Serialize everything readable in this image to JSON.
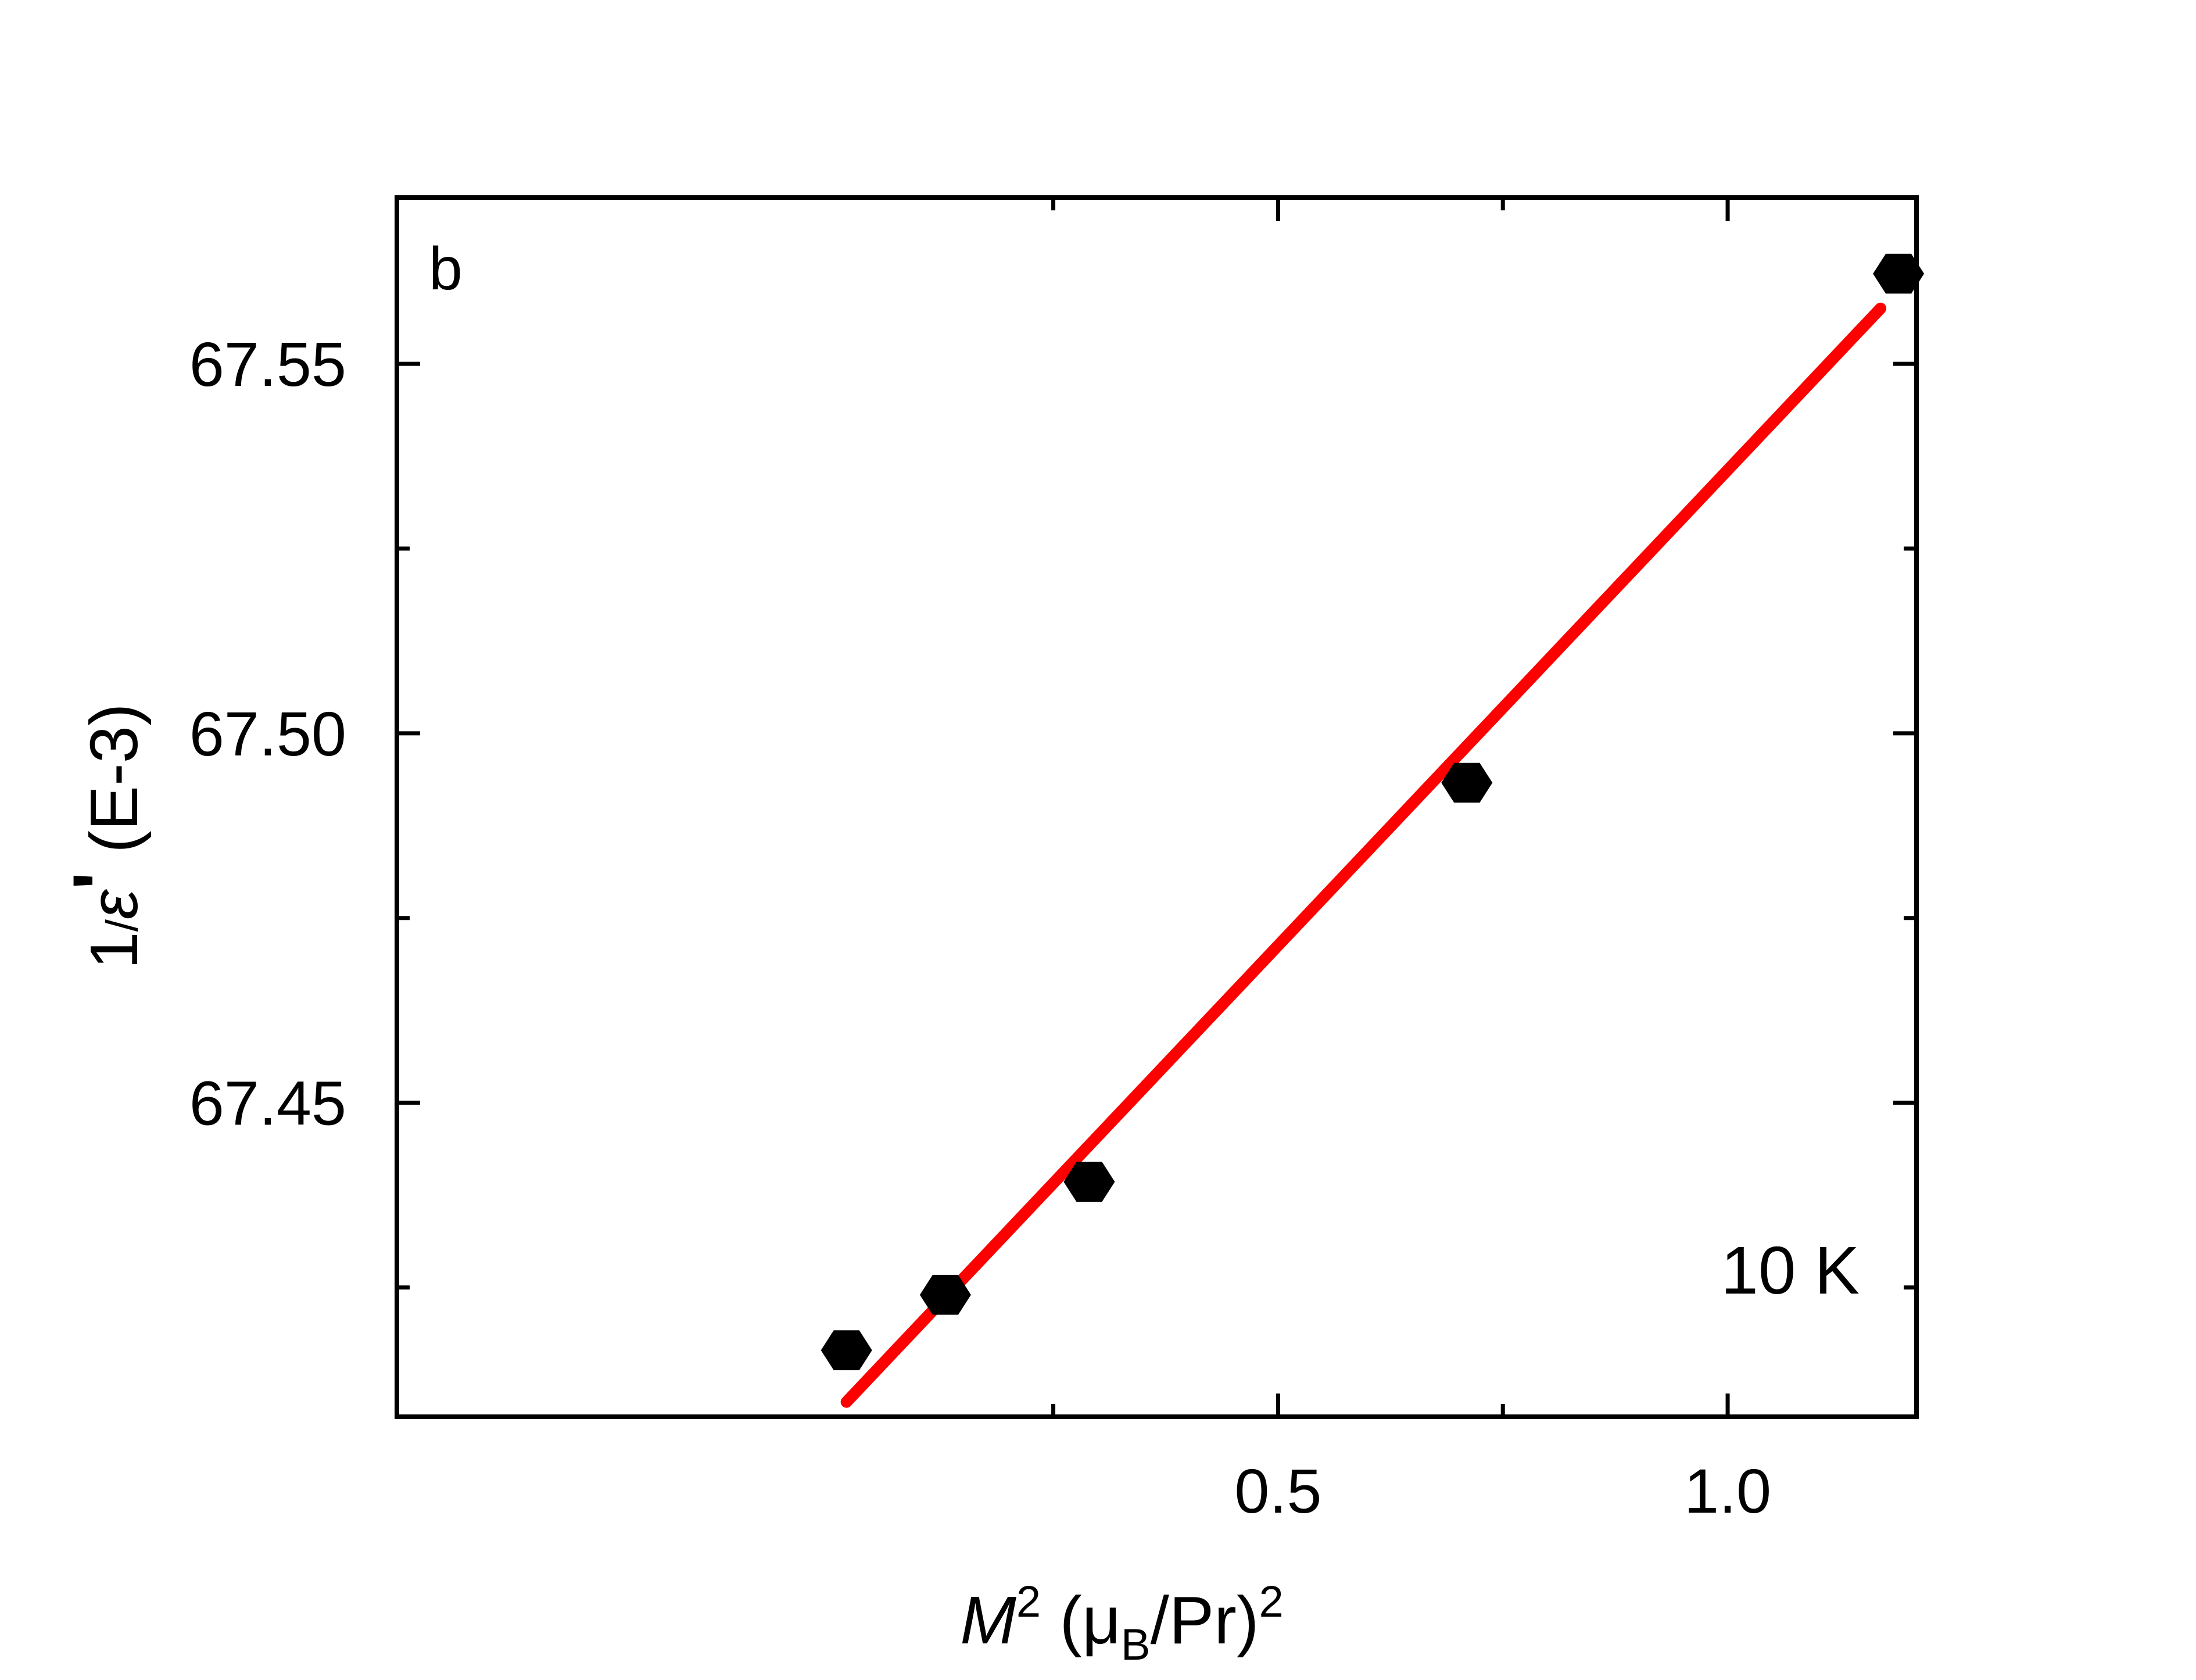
{
  "chart_data": {
    "type": "scatter",
    "panel_label": "b",
    "annotation": "10 K",
    "xlabel": {
      "var": "M",
      "sup1": "2",
      "open": " (μ",
      "sub": "B",
      "close": "/Pr)",
      "sup2": "2"
    },
    "ylabel": {
      "one": "1",
      "slash": "/",
      "eps": "ε",
      "prime": "'",
      "rest": " (E-3)"
    },
    "xlim": [
      -0.48,
      1.21
    ],
    "ylim": [
      67.4075,
      67.5725
    ],
    "x_major_ticks": [
      0.5,
      1.0
    ],
    "x_tick_labels": [
      "0.5",
      "1.0"
    ],
    "x_minor_ticks": [
      0.25,
      0.75
    ],
    "y_major_ticks": [
      67.45,
      67.5,
      67.55
    ],
    "y_tick_labels": [
      "67.45",
      "67.50",
      "67.55"
    ],
    "y_minor_ticks": [
      67.425,
      67.475,
      67.525
    ],
    "series": [
      {
        "marker": "hexagon",
        "color": "#000000",
        "x": [
          0.02,
          0.13,
          0.29,
          0.71,
          1.19
        ],
        "y": [
          67.4165,
          67.424,
          67.4393,
          67.4933,
          67.5622
        ]
      }
    ],
    "fit_line": {
      "color": "#ff0000",
      "x": [
        0.02,
        1.17
      ],
      "y": [
        67.4095,
        67.5575
      ]
    },
    "grid": false,
    "legend": "none"
  }
}
